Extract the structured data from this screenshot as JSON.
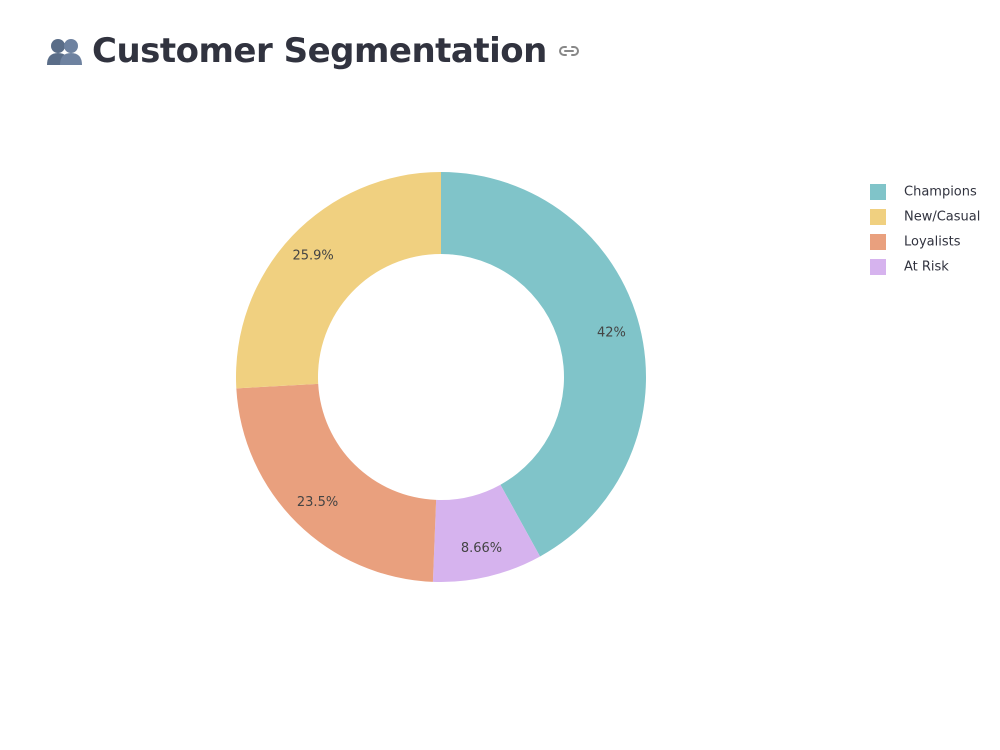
{
  "header": {
    "title": "Customer Segmentation",
    "title_icon": "busts-in-silhouette-icon",
    "link_icon": "link-icon"
  },
  "chart_data": {
    "type": "pie",
    "hole": true,
    "title": "",
    "categories": [
      "Champions",
      "New/Casual",
      "Loyalists",
      "At Risk"
    ],
    "values": [
      42,
      25.9,
      23.5,
      8.66
    ],
    "labels": [
      "42%",
      "25.9%",
      "23.5%",
      "8.66%"
    ],
    "colors": [
      "#80c4c9",
      "#f0d080",
      "#e9a07e",
      "#d6b3ee"
    ],
    "slice_order": [
      "Champions",
      "At Risk",
      "Loyalists",
      "New/Casual"
    ],
    "legend_position": "top-right"
  }
}
